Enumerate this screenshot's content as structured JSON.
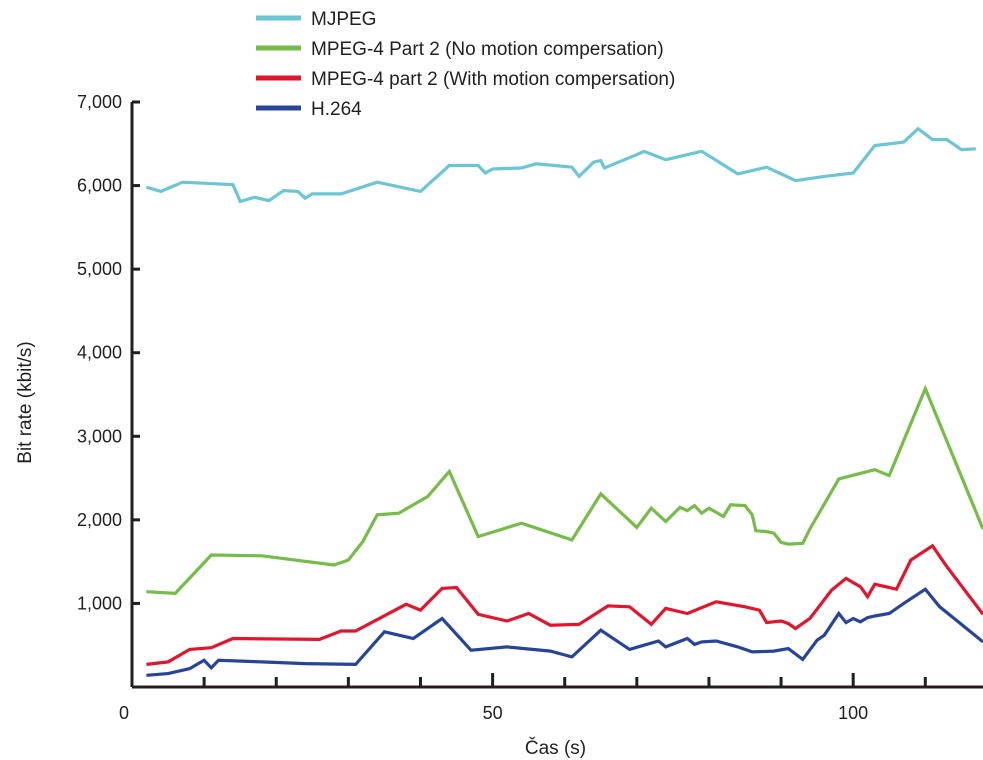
{
  "chart_data": {
    "type": "line",
    "xlabel": "Čas (s)",
    "ylabel": "Bit rate (kbit/s)",
    "xlim": [
      0,
      118
    ],
    "ylim": [
      0,
      7000
    ],
    "x_ticks": [
      0,
      50,
      100
    ],
    "x_tick_labels": [
      "0",
      "50",
      "100"
    ],
    "y_ticks": [
      1000,
      2000,
      3000,
      4000,
      5000,
      6000,
      7000
    ],
    "y_tick_labels": [
      "1,000",
      "2,000",
      "3,000",
      "4,000",
      "5,000",
      "6,000",
      "7,000"
    ],
    "grid": false,
    "legend_position": "top",
    "series": [
      {
        "name": "MJPEG",
        "color": "#6cc5d3",
        "points": [
          [
            2,
            5980
          ],
          [
            4,
            5930
          ],
          [
            7,
            6040
          ],
          [
            14,
            6010
          ],
          [
            15,
            5810
          ],
          [
            17,
            5860
          ],
          [
            19,
            5820
          ],
          [
            21,
            5940
          ],
          [
            23,
            5930
          ],
          [
            24,
            5850
          ],
          [
            25,
            5900
          ],
          [
            29,
            5900
          ],
          [
            34,
            6040
          ],
          [
            40,
            5930
          ],
          [
            44,
            6240
          ],
          [
            48,
            6240
          ],
          [
            49,
            6150
          ],
          [
            50,
            6200
          ],
          [
            54,
            6210
          ],
          [
            56,
            6260
          ],
          [
            61,
            6220
          ],
          [
            62,
            6110
          ],
          [
            64,
            6280
          ],
          [
            65,
            6300
          ],
          [
            65.5,
            6210
          ],
          [
            70,
            6370
          ],
          [
            71,
            6410
          ],
          [
            74,
            6310
          ],
          [
            79,
            6410
          ],
          [
            84,
            6140
          ],
          [
            88,
            6220
          ],
          [
            92,
            6060
          ],
          [
            96,
            6110
          ],
          [
            100,
            6150
          ],
          [
            103,
            6480
          ],
          [
            107,
            6520
          ],
          [
            109,
            6680
          ],
          [
            111,
            6550
          ],
          [
            113,
            6550
          ],
          [
            115,
            6430
          ],
          [
            117,
            6440
          ]
        ]
      },
      {
        "name": "MPEG-4 Part 2 (No motion compersation)",
        "color": "#77bc48",
        "points": [
          [
            2,
            1140
          ],
          [
            6,
            1120
          ],
          [
            11,
            1580
          ],
          [
            18,
            1570
          ],
          [
            28,
            1460
          ],
          [
            30,
            1520
          ],
          [
            32,
            1740
          ],
          [
            34,
            2060
          ],
          [
            37,
            2080
          ],
          [
            41,
            2280
          ],
          [
            44,
            2580
          ],
          [
            48,
            1800
          ],
          [
            54,
            1960
          ],
          [
            61,
            1760
          ],
          [
            65,
            2310
          ],
          [
            70,
            1910
          ],
          [
            72,
            2140
          ],
          [
            74,
            1980
          ],
          [
            76,
            2150
          ],
          [
            77,
            2110
          ],
          [
            78,
            2170
          ],
          [
            79,
            2080
          ],
          [
            80,
            2140
          ],
          [
            82,
            2040
          ],
          [
            83,
            2180
          ],
          [
            85,
            2170
          ],
          [
            86,
            2060
          ],
          [
            86.5,
            1870
          ],
          [
            88,
            1860
          ],
          [
            89,
            1840
          ],
          [
            90,
            1730
          ],
          [
            91,
            1710
          ],
          [
            93,
            1720
          ],
          [
            94,
            1890
          ],
          [
            98,
            2490
          ],
          [
            103,
            2600
          ],
          [
            105,
            2530
          ],
          [
            110,
            3570
          ],
          [
            118,
            1890
          ]
        ]
      },
      {
        "name": "MPEG-4 part 2 (With motion compersation)",
        "color": "#e2152d",
        "points": [
          [
            2,
            270
          ],
          [
            5,
            300
          ],
          [
            8,
            450
          ],
          [
            11,
            470
          ],
          [
            14,
            580
          ],
          [
            26,
            570
          ],
          [
            29,
            670
          ],
          [
            31,
            670
          ],
          [
            38,
            990
          ],
          [
            40,
            920
          ],
          [
            43,
            1180
          ],
          [
            45,
            1190
          ],
          [
            48,
            870
          ],
          [
            52,
            790
          ],
          [
            55,
            880
          ],
          [
            58,
            740
          ],
          [
            62,
            750
          ],
          [
            66,
            970
          ],
          [
            69,
            960
          ],
          [
            72,
            750
          ],
          [
            74,
            940
          ],
          [
            77,
            880
          ],
          [
            81,
            1020
          ],
          [
            85,
            960
          ],
          [
            87,
            920
          ],
          [
            88,
            770
          ],
          [
            90,
            790
          ],
          [
            91,
            760
          ],
          [
            92,
            700
          ],
          [
            94,
            820
          ],
          [
            97,
            1160
          ],
          [
            99,
            1300
          ],
          [
            101,
            1200
          ],
          [
            102,
            1080
          ],
          [
            103,
            1230
          ],
          [
            106,
            1170
          ],
          [
            108,
            1520
          ],
          [
            111,
            1690
          ],
          [
            113,
            1440
          ],
          [
            118,
            870
          ]
        ]
      },
      {
        "name": "H.264",
        "color": "#28449a",
        "points": [
          [
            2,
            140
          ],
          [
            5,
            160
          ],
          [
            8,
            220
          ],
          [
            10,
            320
          ],
          [
            11,
            230
          ],
          [
            12,
            320
          ],
          [
            18,
            300
          ],
          [
            24,
            280
          ],
          [
            31,
            270
          ],
          [
            35,
            660
          ],
          [
            39,
            580
          ],
          [
            43,
            820
          ],
          [
            47,
            440
          ],
          [
            52,
            480
          ],
          [
            58,
            430
          ],
          [
            61,
            360
          ],
          [
            65,
            680
          ],
          [
            69,
            450
          ],
          [
            73,
            550
          ],
          [
            74,
            480
          ],
          [
            77,
            580
          ],
          [
            78,
            510
          ],
          [
            79,
            540
          ],
          [
            81,
            550
          ],
          [
            84,
            480
          ],
          [
            86,
            420
          ],
          [
            89,
            430
          ],
          [
            91,
            460
          ],
          [
            93,
            330
          ],
          [
            95,
            560
          ],
          [
            96,
            620
          ],
          [
            98,
            880
          ],
          [
            99,
            770
          ],
          [
            100,
            820
          ],
          [
            101,
            780
          ],
          [
            102,
            830
          ],
          [
            103,
            850
          ],
          [
            105,
            880
          ],
          [
            107,
            1000
          ],
          [
            110,
            1170
          ],
          [
            112,
            960
          ],
          [
            114,
            820
          ],
          [
            118,
            540
          ]
        ]
      }
    ]
  }
}
